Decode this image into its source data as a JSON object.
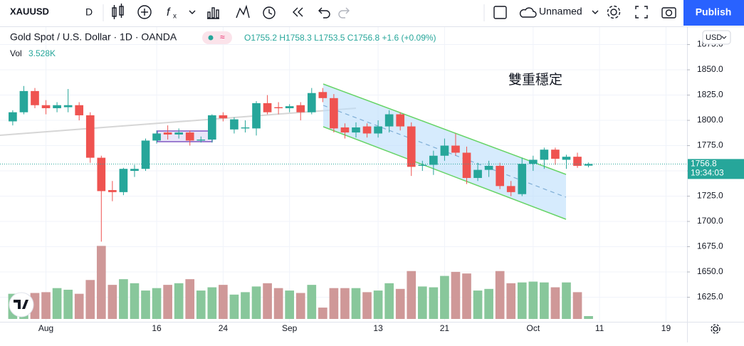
{
  "toolbar": {
    "symbol": "XAUUSD",
    "interval": "D",
    "layout_name": "Unnamed",
    "publish": "Publish"
  },
  "currency": "USD",
  "chart_data": {
    "type": "candlestick",
    "title": "Gold Spot / U.S. Dollar · 1D · OANDA",
    "ohlc_text": "O1755.2 H1758.3 L1753.5 C1756.8 +1.6 (+0.09%)",
    "volume_label": "Vol",
    "volume_value_label": "3.528K",
    "annotation": "雙重穩定",
    "last_price_label": "1756.8",
    "countdown": "19:34:03",
    "up_color": "#26a69a",
    "down_color": "#ef5350",
    "volume_up_color": "#88c79b",
    "volume_down_color": "#cf9898",
    "x": [
      0,
      1,
      2,
      3,
      4,
      5,
      6,
      7,
      8,
      9,
      10,
      11,
      12,
      13,
      14,
      15,
      16,
      17,
      18,
      19,
      20,
      21,
      22,
      23,
      24,
      25,
      26,
      27,
      28,
      29,
      30,
      31,
      32,
      33,
      34,
      35,
      36,
      37,
      38,
      39,
      40,
      41,
      42,
      43,
      44,
      45,
      46,
      47,
      48,
      49,
      50,
      51,
      52
    ],
    "open": [
      1799,
      1808,
      1829,
      1815,
      1812,
      1813,
      1815,
      1805,
      1763,
      1731,
      1729,
      1750,
      1752,
      1780,
      1788,
      1786,
      1788,
      1780,
      1781,
      1805,
      1791,
      1792,
      1792,
      1817,
      1813,
      1812,
      1815,
      1808,
      1828,
      1822,
      1793,
      1788,
      1794,
      1787,
      1794,
      1806,
      1794,
      1755,
      1756,
      1765,
      1775,
      1768,
      1743,
      1751,
      1755,
      1735,
      1727,
      1757,
      1761,
      1771,
      1761,
      1764,
      1755.2
    ],
    "high": [
      1810,
      1834,
      1832,
      1820,
      1818,
      1831,
      1818,
      1808,
      1765,
      1740,
      1753,
      1756,
      1782,
      1790,
      1795,
      1792,
      1790,
      1784,
      1806,
      1808,
      1803,
      1800,
      1819,
      1825,
      1818,
      1816,
      1818,
      1832,
      1832,
      1826,
      1797,
      1798,
      1797,
      1800,
      1810,
      1808,
      1798,
      1760,
      1770,
      1782,
      1787,
      1774,
      1758,
      1760,
      1758,
      1740,
      1763,
      1765,
      1773,
      1773,
      1766,
      1768,
      1758.3
    ],
    "low": [
      1795,
      1806,
      1812,
      1806,
      1808,
      1808,
      1800,
      1758,
      1680,
      1720,
      1726,
      1744,
      1750,
      1777,
      1781,
      1782,
      1775,
      1778,
      1778,
      1799,
      1787,
      1788,
      1785,
      1806,
      1806,
      1808,
      1800,
      1806,
      1818,
      1788,
      1782,
      1783,
      1783,
      1783,
      1788,
      1790,
      1745,
      1750,
      1746,
      1760,
      1765,
      1737,
      1740,
      1744,
      1732,
      1725,
      1725,
      1750,
      1752,
      1756,
      1752,
      1753,
      1753.5
    ],
    "close": [
      1808,
      1829,
      1815,
      1812,
      1815,
      1815,
      1805,
      1763,
      1730,
      1729,
      1752,
      1752,
      1780,
      1787,
      1786,
      1788,
      1780,
      1781,
      1805,
      1802,
      1801,
      1793,
      1817,
      1808,
      1812,
      1814,
      1808,
      1827,
      1822,
      1792,
      1788,
      1793,
      1787,
      1794,
      1806,
      1794,
      1754,
      1756,
      1765,
      1775,
      1768,
      1743,
      1751,
      1755,
      1735,
      1729,
      1757,
      1761,
      1771,
      1762,
      1764,
      1755,
      1756.8
    ],
    "volume": [
      31,
      29,
      32,
      33,
      38,
      36,
      31,
      48,
      90,
      42,
      49,
      44,
      35,
      38,
      42,
      44,
      49,
      35,
      39,
      42,
      30,
      33,
      40,
      44,
      38,
      35,
      32,
      42,
      14,
      38,
      38,
      38,
      33,
      35,
      44,
      37,
      59,
      40,
      39,
      53,
      58,
      56,
      35,
      37,
      59,
      44,
      45,
      46,
      45,
      39,
      45,
      33,
      3.528
    ],
    "xlim": [
      -1.15,
      60.9
    ],
    "xticks": [
      {
        "value": 3,
        "label": "Aug"
      },
      {
        "value": 13,
        "label": "16"
      },
      {
        "value": 19,
        "label": "24"
      },
      {
        "value": 25,
        "label": "Sep"
      },
      {
        "value": 33,
        "label": "13"
      },
      {
        "value": 39,
        "label": "21"
      },
      {
        "value": 47,
        "label": "Oct"
      },
      {
        "value": 53,
        "label": "11"
      },
      {
        "value": 59,
        "label": "19"
      }
    ],
    "ylim": [
      1600.7,
      1892.3
    ],
    "yticks": [
      {
        "value": 1625,
        "label": "1625.0"
      },
      {
        "value": 1650,
        "label": "1650.0"
      },
      {
        "value": 1675,
        "label": "1675.0"
      },
      {
        "value": 1700,
        "label": "1700.0"
      },
      {
        "value": 1725,
        "label": "1725.0"
      },
      {
        "value": 1750,
        "label": "1750.0"
      },
      {
        "value": 1775,
        "label": "1775.0"
      },
      {
        "value": 1800,
        "label": "1800.0"
      },
      {
        "value": 1825,
        "label": "1825.0"
      },
      {
        "value": 1850,
        "label": "1850.0"
      },
      {
        "value": 1875,
        "label": "1875.0"
      }
    ],
    "volume_lim": [
      0,
      100
    ],
    "grid": true
  }
}
